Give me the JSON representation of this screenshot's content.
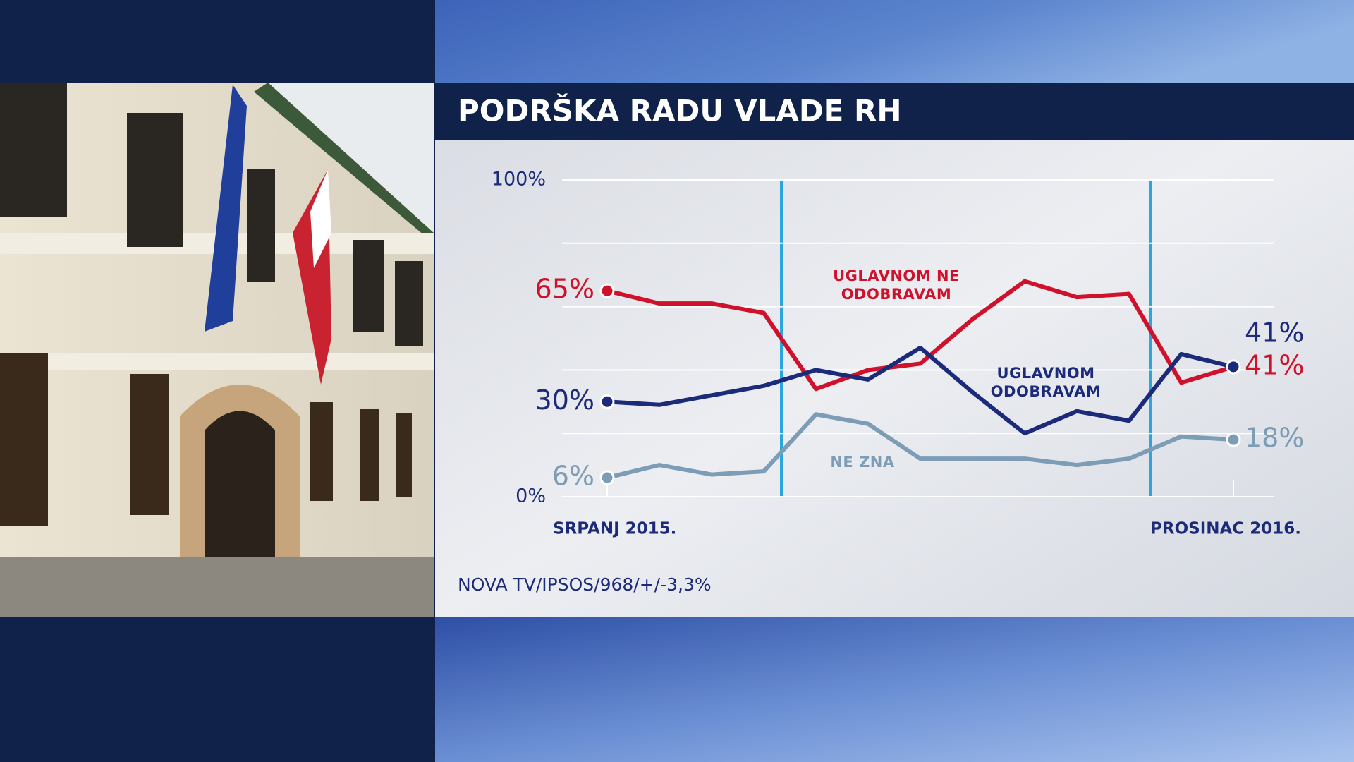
{
  "chart_data": {
    "type": "line",
    "title": "PODRŠKA RADU VLADE RH",
    "source": "NOVA TV/IPSOS/968/+/-3,3%",
    "categories": [
      "SRPANJ 2015.",
      null,
      null,
      null,
      null,
      null,
      null,
      null,
      null,
      null,
      null,
      null,
      "PROSINAC 2016."
    ],
    "series": [
      {
        "name": "UGLAVNOM NE ODOBRAVAM",
        "color": "#d0112b",
        "values": [
          65,
          61,
          61,
          58,
          34,
          40,
          42,
          56,
          68,
          63,
          64,
          36,
          41
        ],
        "value_labels": [
          "65%",
          null,
          null,
          null,
          null,
          null,
          null,
          null,
          null,
          null,
          null,
          null,
          "41%"
        ]
      },
      {
        "name": "UGLAVNOM ODOBRAVAM",
        "color": "#1c2a7a",
        "values": [
          30,
          29,
          32,
          35,
          40,
          37,
          47,
          33,
          20,
          27,
          24,
          45,
          41
        ],
        "value_labels": [
          "30%",
          null,
          null,
          null,
          null,
          null,
          null,
          null,
          null,
          null,
          null,
          null,
          "41%"
        ]
      },
      {
        "name": "NE ZNA",
        "color": "#7d9cb6",
        "values": [
          6,
          10,
          7,
          8,
          26,
          23,
          12,
          12,
          12,
          10,
          12,
          19,
          18
        ],
        "value_labels": [
          "6%",
          null,
          null,
          null,
          null,
          null,
          null,
          null,
          null,
          null,
          null,
          null,
          "18%"
        ]
      }
    ],
    "ylim": [
      0,
      100
    ],
    "yticks": [
      {
        "value": 0,
        "label": "0%"
      },
      {
        "value": 20,
        "label": null
      },
      {
        "value": 40,
        "label": null
      },
      {
        "value": 60,
        "label": null
      },
      {
        "value": 80,
        "label": null
      },
      {
        "value": 100,
        "label": "100%"
      }
    ],
    "grid": true
  }
}
